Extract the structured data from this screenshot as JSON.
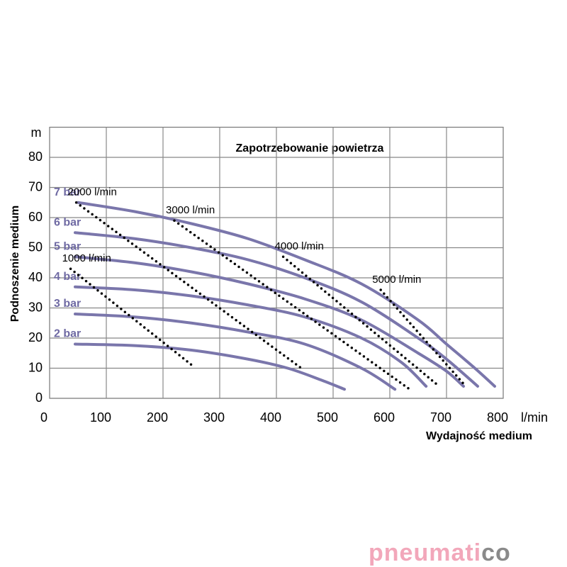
{
  "chart_data": {
    "type": "line",
    "title": "Zapotrzebowanie powietrza",
    "x_label": "Wydajność medium",
    "x_unit": "l/min",
    "y_label": "Podnoszenie medium",
    "y_unit": "m",
    "xlim": [
      0,
      800
    ],
    "xticks": [
      0,
      100,
      200,
      300,
      400,
      500,
      600,
      700,
      800
    ],
    "ylim": [
      0,
      90
    ],
    "yticks": [
      0,
      10,
      20,
      30,
      40,
      50,
      60,
      70,
      80
    ],
    "grid": true,
    "color": "#7a76ab",
    "label_color": "#6f6aa3",
    "series": [
      {
        "name": "7 bar",
        "x": [
          50,
          150,
          250,
          350,
          450,
          550,
          650,
          700,
          750,
          785
        ],
        "values": [
          65,
          62,
          58,
          53,
          46,
          38,
          26,
          18,
          10,
          4
        ]
      },
      {
        "name": "6 bar",
        "x": [
          45,
          150,
          250,
          350,
          450,
          550,
          650,
          700,
          755
        ],
        "values": [
          55,
          53,
          50,
          46,
          40,
          32,
          20,
          13,
          4
        ]
      },
      {
        "name": "5 bar",
        "x": [
          45,
          150,
          250,
          350,
          450,
          550,
          650,
          700,
          730
        ],
        "values": [
          47,
          45,
          42,
          38,
          33,
          26,
          15,
          9,
          4
        ]
      },
      {
        "name": "4 bar",
        "x": [
          45,
          150,
          250,
          350,
          450,
          550,
          620,
          664
        ],
        "values": [
          37,
          36,
          34,
          31,
          27,
          20,
          12,
          4
        ]
      },
      {
        "name": "3 bar",
        "x": [
          45,
          150,
          250,
          350,
          450,
          550,
          609
        ],
        "values": [
          28,
          27,
          25,
          22,
          18,
          10,
          3
        ]
      },
      {
        "name": "2 bar",
        "x": [
          45,
          150,
          250,
          350,
          420,
          480,
          520
        ],
        "values": [
          18,
          17.5,
          16,
          13,
          10,
          6,
          3
        ]
      }
    ],
    "consumption_lines": [
      {
        "name": "1000 l/min",
        "x": [
          37,
          251
        ],
        "values": [
          43,
          11
        ]
      },
      {
        "name": "2000 l/min",
        "x": [
          47,
          444
        ],
        "values": [
          65,
          10
        ]
      },
      {
        "name": "3000 l/min",
        "x": [
          220,
          635
        ],
        "values": [
          59,
          3
        ]
      },
      {
        "name": "4000 l/min",
        "x": [
          412,
          687
        ],
        "values": [
          47,
          4
        ]
      },
      {
        "name": "5000 l/min",
        "x": [
          584,
          734
        ],
        "values": [
          36,
          4
        ]
      }
    ]
  },
  "brand": {
    "main": "pneumati",
    "end": "co"
  }
}
